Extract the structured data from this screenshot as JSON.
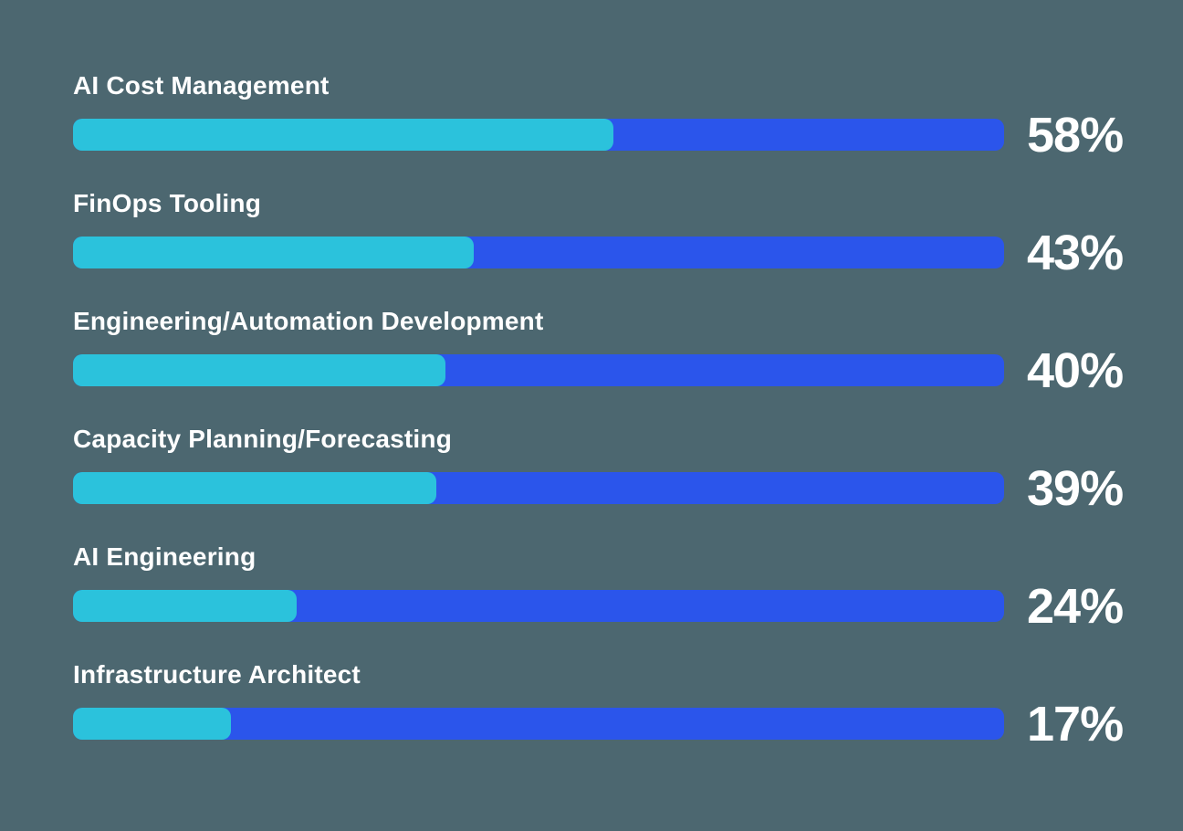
{
  "background_color": "#4C6770",
  "chart_data": {
    "type": "bar",
    "orientation": "horizontal",
    "title": "",
    "xlabel": "",
    "ylabel": "",
    "unit": "%",
    "xlim": [
      0,
      100
    ],
    "grid": false,
    "legend": false,
    "categories": [
      "AI Cost Management",
      "FinOps Tooling",
      "Engineering/Automation Development",
      "Capacity Planning/Forecasting",
      "AI Engineering",
      "Infrastructure Architect"
    ],
    "values": [
      58,
      43,
      40,
      39,
      24,
      17
    ],
    "value_labels": [
      "58%",
      "43%",
      "40%",
      "39%",
      "24%",
      "17%"
    ],
    "colors": {
      "fill": "#2BC2DC",
      "track": "#2B55EB",
      "label_text": "#FFFFFF",
      "value_text": "#FFFFFF"
    }
  }
}
